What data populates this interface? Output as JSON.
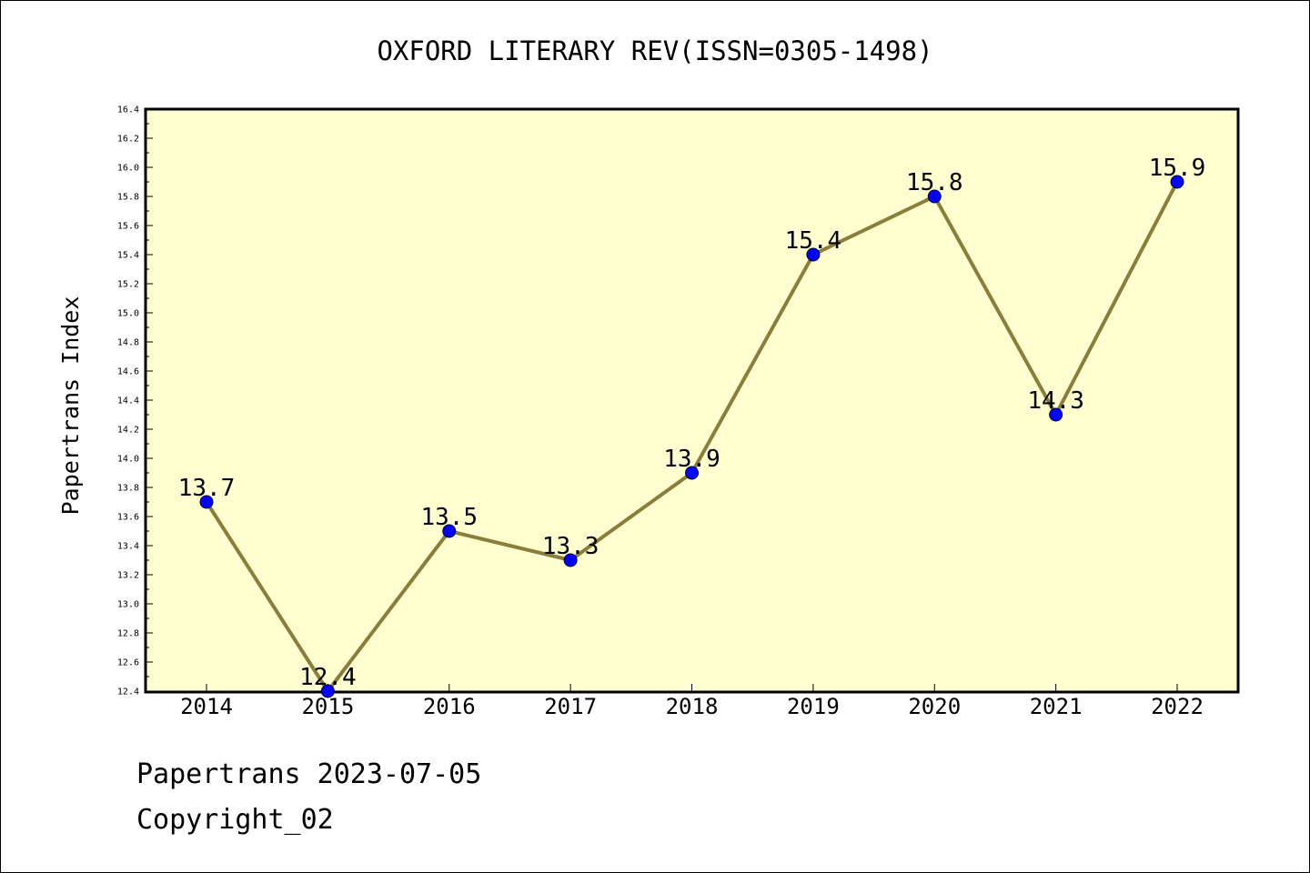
{
  "chart_data": {
    "type": "line",
    "title": "OXFORD LITERARY REV(ISSN=0305-1498)",
    "xlabel": "",
    "ylabel": "Papertrans Index",
    "categories": [
      "2014",
      "2015",
      "2016",
      "2017",
      "2018",
      "2019",
      "2020",
      "2021",
      "2022"
    ],
    "series": [
      {
        "values": [
          13.7,
          12.4,
          13.5,
          13.3,
          13.9,
          15.4,
          15.8,
          14.3,
          15.9
        ],
        "data_labels": [
          "13.7",
          "12.4",
          "13.5",
          "13.3",
          "13.9",
          "15.4",
          "15.8",
          "14.3",
          "15.9"
        ]
      }
    ],
    "ylim": [
      12.4,
      16.4
    ],
    "ytick_labels": [
      "12.4",
      "12.6",
      "12.8",
      "13.0",
      "13.2",
      "13.4",
      "13.6",
      "13.8",
      "14.0",
      "14.2",
      "14.4",
      "14.6",
      "14.8",
      "15.0",
      "15.2",
      "15.4",
      "15.6",
      "15.8",
      "16.0",
      "16.2",
      "16.4"
    ],
    "grid": false,
    "legend": "none",
    "colors": {
      "plot_background": "#ffffd0",
      "line": "#8b7d3a",
      "marker": "#0000ff"
    }
  },
  "footer": {
    "date_line": "Papertrans 2023-07-05",
    "copyright_line": "Copyright_02"
  }
}
